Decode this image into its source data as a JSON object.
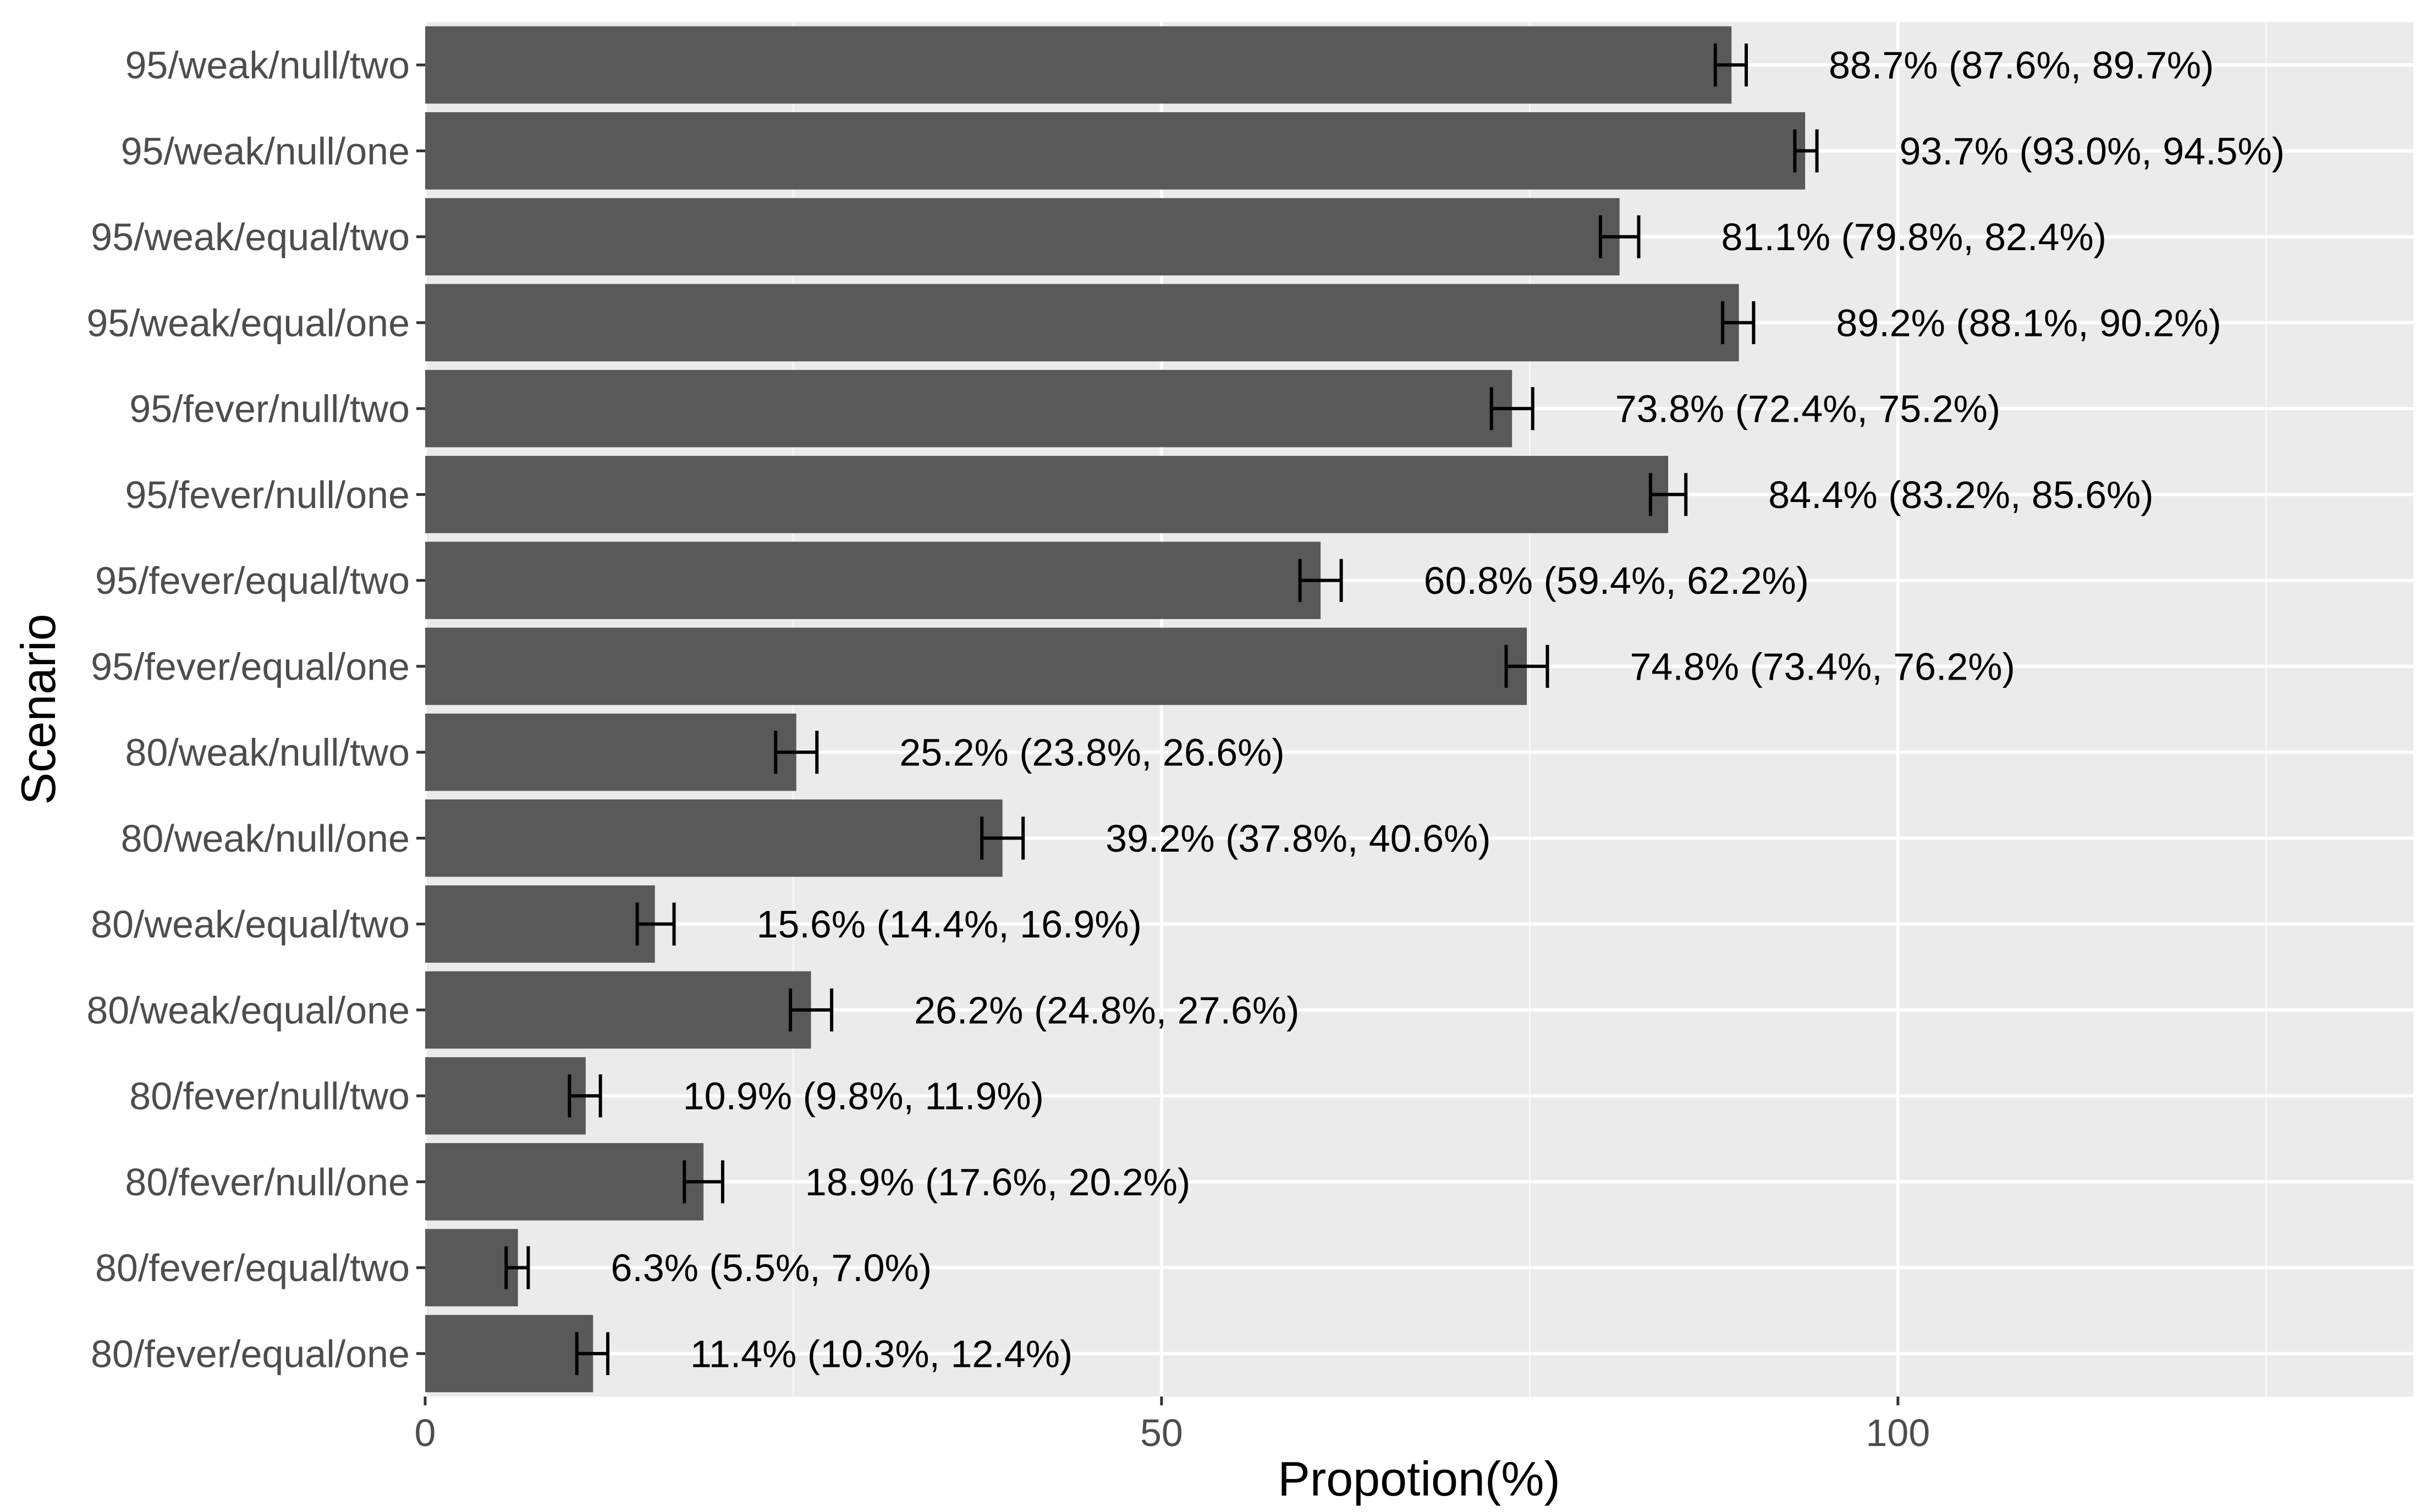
{
  "chart_data": {
    "type": "bar",
    "orientation": "horizontal",
    "title": "",
    "xlabel": "Propotion(%)",
    "ylabel": "Scenario",
    "xlim": [
      0,
      135
    ],
    "xticks": [
      0,
      50,
      100
    ],
    "grid": true,
    "bar_color": "#595959",
    "panel_color": "#ebebeb",
    "categories": [
      "95/weak/null/two",
      "95/weak/null/one",
      "95/weak/equal/two",
      "95/weak/equal/one",
      "95/fever/null/two",
      "95/fever/null/one",
      "95/fever/equal/two",
      "95/fever/equal/one",
      "80/weak/null/two",
      "80/weak/null/one",
      "80/weak/equal/two",
      "80/weak/equal/one",
      "80/fever/null/two",
      "80/fever/null/one",
      "80/fever/equal/two",
      "80/fever/equal/one"
    ],
    "values": [
      88.7,
      93.7,
      81.1,
      89.2,
      73.8,
      84.4,
      60.8,
      74.8,
      25.2,
      39.2,
      15.6,
      26.2,
      10.9,
      18.9,
      6.3,
      11.4
    ],
    "lower": [
      87.6,
      93.0,
      79.8,
      88.1,
      72.4,
      83.2,
      59.4,
      73.4,
      23.8,
      37.8,
      14.4,
      24.8,
      9.8,
      17.6,
      5.5,
      10.3
    ],
    "upper": [
      89.7,
      94.5,
      82.4,
      90.2,
      75.2,
      85.6,
      62.2,
      76.2,
      26.6,
      40.6,
      16.9,
      27.6,
      11.9,
      20.2,
      7.0,
      12.4
    ],
    "labels": [
      "88.7% (87.6%, 89.7%)",
      "93.7% (93.0%, 94.5%)",
      "81.1% (79.8%, 82.4%)",
      "89.2% (88.1%, 90.2%)",
      "73.8% (72.4%, 75.2%)",
      "84.4% (83.2%, 85.6%)",
      "60.8% (59.4%, 62.2%)",
      "74.8% (73.4%, 76.2%)",
      "25.2% (23.8%, 26.6%)",
      "39.2% (37.8%, 40.6%)",
      "15.6% (14.4%, 16.9%)",
      "26.2% (24.8%, 27.6%)",
      "10.9% (9.8%, 11.9%)",
      "18.9% (17.6%, 20.2%)",
      "6.3% (5.5%, 7.0%)",
      "11.4% (10.3%, 12.4%)"
    ]
  }
}
